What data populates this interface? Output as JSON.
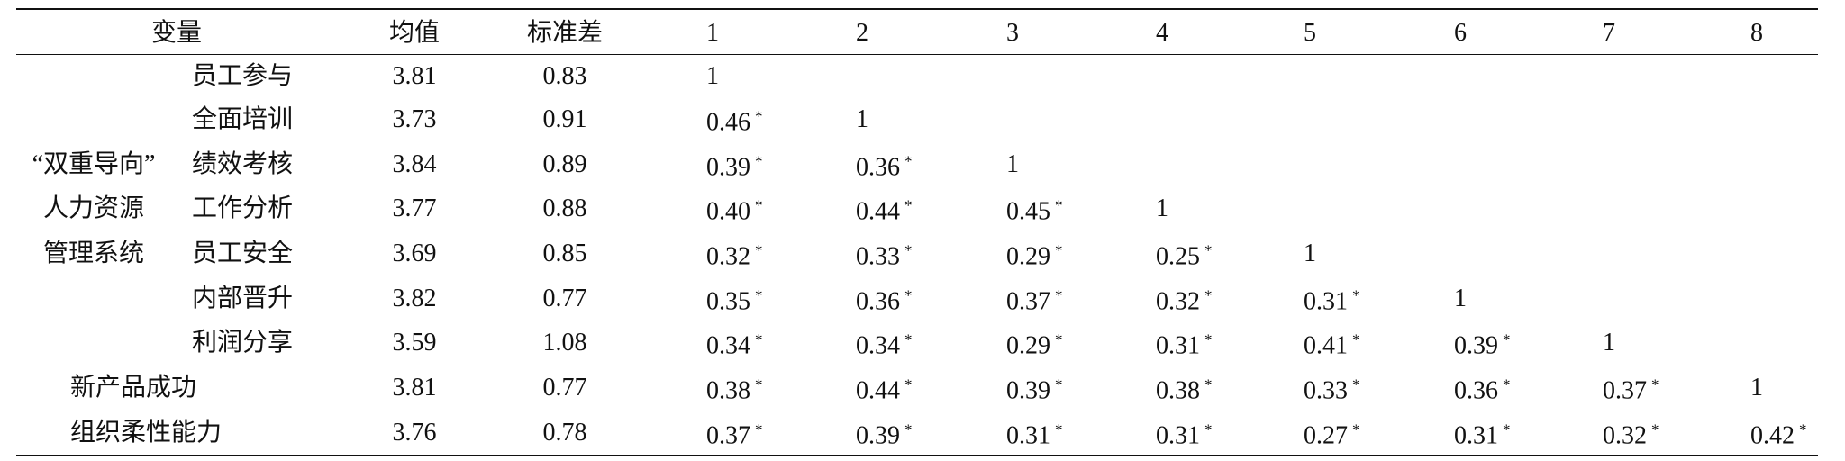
{
  "header": [
    "变量",
    "均值",
    "标准差",
    "1",
    "2",
    "3",
    "4",
    "5",
    "6",
    "7",
    "8"
  ],
  "group_label": [
    "“双重导向”",
    "人力资源",
    "管理系统"
  ],
  "rows": [
    {
      "name": "员工参与",
      "mean": "3.81",
      "sd": "0.83",
      "r": [
        {
          "v": "1"
        }
      ]
    },
    {
      "name": "全面培训",
      "mean": "3.73",
      "sd": "0.91",
      "r": [
        {
          "v": "0.46",
          "sig": "*"
        },
        {
          "v": "1"
        }
      ]
    },
    {
      "name": "绩效考核",
      "mean": "3.84",
      "sd": "0.89",
      "r": [
        {
          "v": "0.39",
          "sig": "*"
        },
        {
          "v": "0.36",
          "sig": "*"
        },
        {
          "v": "1"
        }
      ]
    },
    {
      "name": "工作分析",
      "mean": "3.77",
      "sd": "0.88",
      "r": [
        {
          "v": "0.40",
          "sig": "*"
        },
        {
          "v": "0.44",
          "sig": "*"
        },
        {
          "v": "0.45",
          "sig": "*"
        },
        {
          "v": "1"
        }
      ]
    },
    {
      "name": "员工安全",
      "mean": "3.69",
      "sd": "0.85",
      "r": [
        {
          "v": "0.32",
          "sig": "*"
        },
        {
          "v": "0.33",
          "sig": "*"
        },
        {
          "v": "0.29",
          "sig": "*"
        },
        {
          "v": "0.25",
          "sig": "*"
        },
        {
          "v": "1"
        }
      ]
    },
    {
      "name": "内部晋升",
      "mean": "3.82",
      "sd": "0.77",
      "r": [
        {
          "v": "0.35",
          "sig": "*"
        },
        {
          "v": "0.36",
          "sig": "*"
        },
        {
          "v": "0.37",
          "sig": "*"
        },
        {
          "v": "0.32",
          "sig": "*"
        },
        {
          "v": "0.31",
          "sig": "*"
        },
        {
          "v": "1"
        }
      ]
    },
    {
      "name": "利润分享",
      "mean": "3.59",
      "sd": "1.08",
      "r": [
        {
          "v": "0.34",
          "sig": "*"
        },
        {
          "v": "0.34",
          "sig": "*"
        },
        {
          "v": "0.29",
          "sig": "*"
        },
        {
          "v": "0.31",
          "sig": "*"
        },
        {
          "v": "0.41",
          "sig": "*"
        },
        {
          "v": "0.39",
          "sig": "*"
        },
        {
          "v": "1"
        }
      ]
    },
    {
      "name": "新产品成功",
      "mean": "3.81",
      "sd": "0.77",
      "r": [
        {
          "v": "0.38",
          "sig": "*"
        },
        {
          "v": "0.44",
          "sig": "*"
        },
        {
          "v": "0.39",
          "sig": "*"
        },
        {
          "v": "0.38",
          "sig": "*"
        },
        {
          "v": "0.33",
          "sig": "*"
        },
        {
          "v": "0.36",
          "sig": "*"
        },
        {
          "v": "0.37",
          "sig": "*"
        },
        {
          "v": "1"
        }
      ]
    },
    {
      "name": "组织柔性能力",
      "mean": "3.76",
      "sd": "0.78",
      "r": [
        {
          "v": "0.37",
          "sig": "*"
        },
        {
          "v": "0.39",
          "sig": "*"
        },
        {
          "v": "0.31",
          "sig": "*"
        },
        {
          "v": "0.31",
          "sig": "*"
        },
        {
          "v": "0.27",
          "sig": "*"
        },
        {
          "v": "0.31",
          "sig": "*"
        },
        {
          "v": "0.32",
          "sig": "*"
        },
        {
          "v": "0.42",
          "sig": "*"
        }
      ]
    }
  ]
}
